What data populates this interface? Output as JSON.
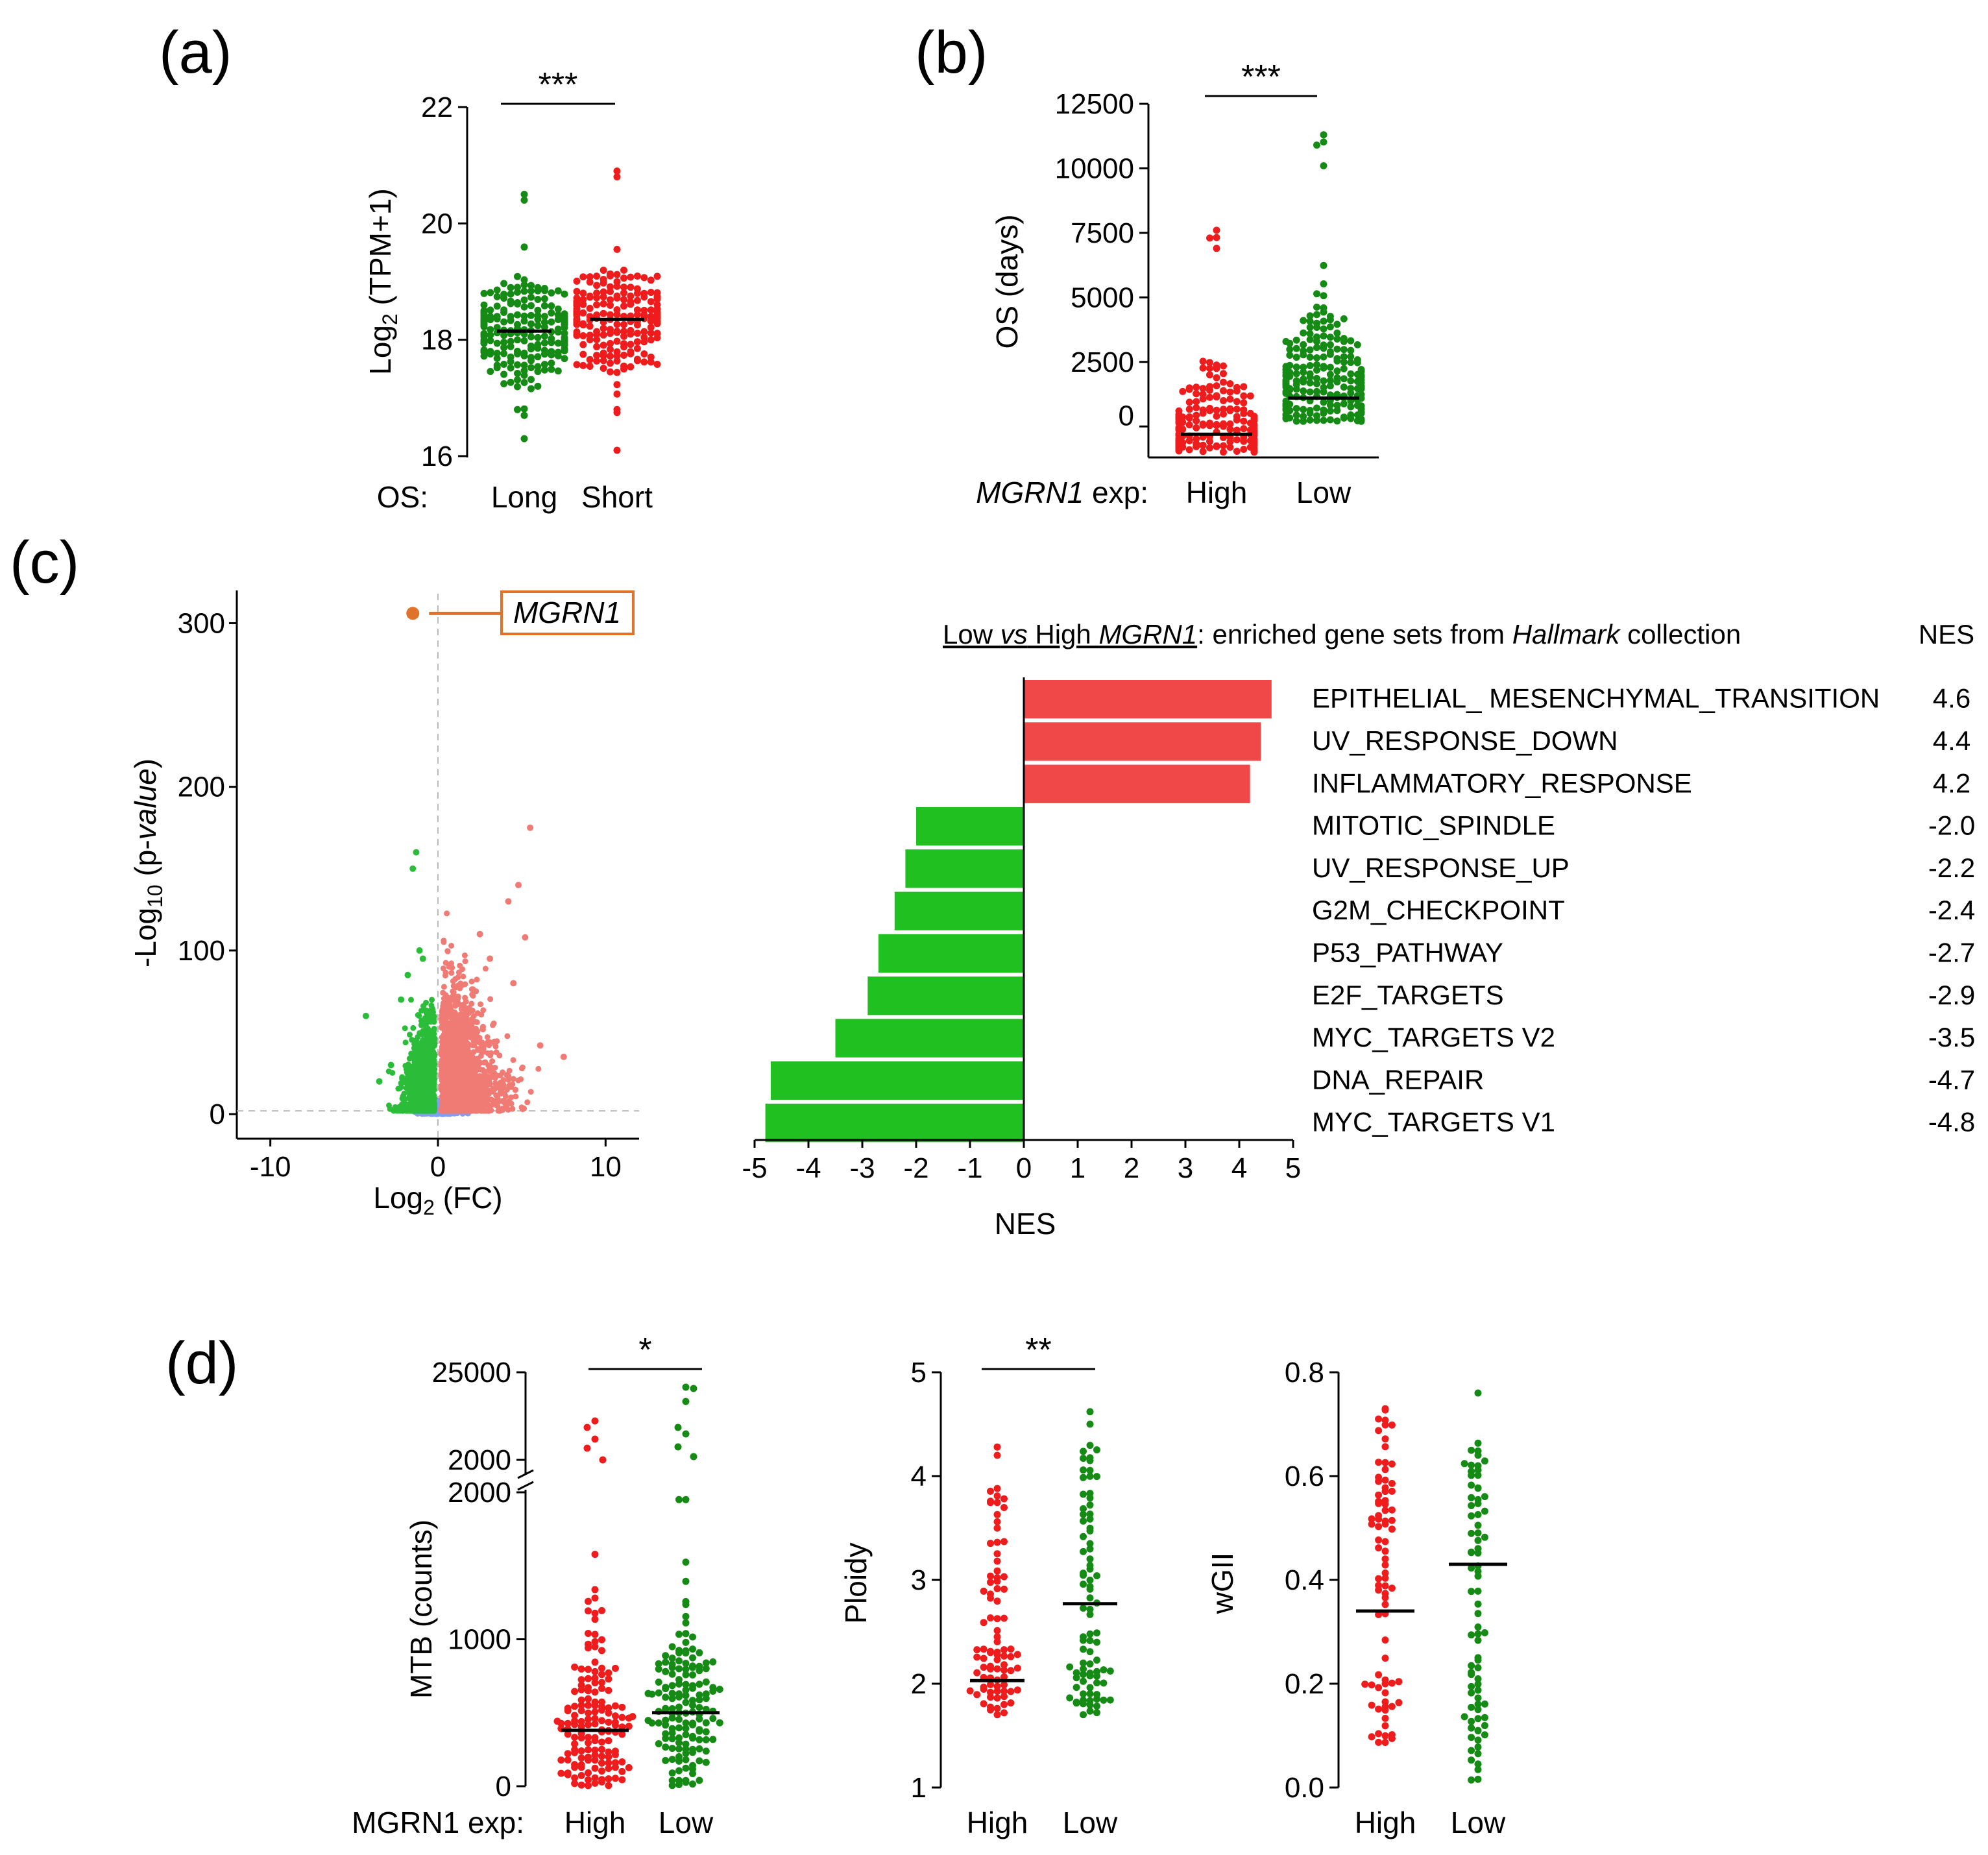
{
  "panels": {
    "a": "(a)",
    "b": "(b)",
    "c": "(c)",
    "d": "(d)"
  },
  "colors": {
    "red": "#ee1c1c",
    "green": "#158a15",
    "volcano_green": "#2bbd3a",
    "volcano_red": "#f07b75",
    "volcano_blue": "#7f9ff0",
    "highlight": "#e0732b",
    "nes_red": "#f04848",
    "nes_green": "#1fc01f"
  },
  "chart_data": [
    {
      "id": "a",
      "type": "scatter",
      "ylabel": "Log",
      "ylabel_sub": "2",
      "ylabel_rest": " (TPM+1)",
      "ylim": [
        16,
        22
      ],
      "yticks": [
        16,
        18,
        20,
        22
      ],
      "xprefix": "OS:",
      "categories": [
        "Long",
        "Short"
      ],
      "medians": [
        18.15,
        18.35
      ],
      "range_low": [
        16.3,
        16.1
      ],
      "range_high": [
        20.5,
        20.9
      ],
      "significance": "***"
    },
    {
      "id": "b",
      "type": "scatter",
      "ylabel": "OS (days)",
      "ylim": [
        -1200,
        12500
      ],
      "yticks": [
        0,
        2500,
        5000,
        7500,
        10000,
        12500
      ],
      "xprefix_italic": "MGRN1",
      "xprefix_rest": " exp:",
      "categories": [
        "High",
        "Low"
      ],
      "medians": [
        -300,
        1100
      ],
      "range_high": [
        7600,
        11300
      ],
      "significance": "***"
    },
    {
      "id": "c_volcano",
      "type": "scatter",
      "xlabel": "Log",
      "xlabel_sub": "2",
      "xlabel_rest": " (FC)",
      "ylabel": "-Log",
      "ylabel_sub": "10",
      "ylabel_rest": " (p-",
      "ylabel_italic": "value",
      "ylabel_end": ")",
      "xlim": [
        -12,
        12
      ],
      "ylim": [
        -15,
        320
      ],
      "xticks": [
        -10,
        0,
        10
      ],
      "yticks": [
        0,
        100,
        200,
        300
      ],
      "highlight": {
        "label": "MGRN1",
        "x": -1.5,
        "y": 306
      }
    },
    {
      "id": "c_gsea",
      "type": "bar",
      "title_pre": "Low ",
      "title_vs": "vs",
      "title_mid": " High ",
      "title_gene": "MGRN1",
      "title_post": ": enriched gene sets from ",
      "title_coll": "Hallmark",
      "title_end": " collection",
      "nes_header": "NES",
      "categories": [
        "EPITHELIAL_ MESENCHYMAL_TRANSITION",
        "UV_RESPONSE_DOWN",
        "INFLAMMATORY_RESPONSE",
        "MITOTIC_SPINDLE",
        "UV_RESPONSE_UP",
        "G2M_CHECKPOINT",
        "P53_PATHWAY",
        "E2F_TARGETS",
        "MYC_TARGETS V2",
        "DNA_REPAIR",
        "MYC_TARGETS V1"
      ],
      "values": [
        4.6,
        4.4,
        4.2,
        -2.0,
        -2.2,
        -2.4,
        -2.7,
        -2.9,
        -3.5,
        -4.7,
        -4.8
      ],
      "value_labels": [
        "4.6",
        "4.4",
        "4.2",
        "-2.0",
        "-2.2",
        "-2.4",
        "-2.7",
        "-2.9",
        "-3.5",
        "-4.7",
        "-4.8"
      ],
      "xlabel": "NES",
      "xlim": [
        -5,
        5
      ],
      "xticks": [
        -5,
        -4,
        -3,
        -2,
        -1,
        0,
        1,
        2,
        3,
        4,
        5
      ]
    },
    {
      "id": "d_mtb",
      "type": "scatter",
      "ylabel": "MTB (counts)",
      "ylim": [
        0,
        2000
      ],
      "yticks": [
        0,
        1000,
        2000
      ],
      "upper_ticks": [
        "25000",
        "2000"
      ],
      "xprefix": "MGRN1  exp:",
      "categories": [
        "High",
        "Low"
      ],
      "medians": [
        380,
        500
      ],
      "significance": "*"
    },
    {
      "id": "d_ploidy",
      "type": "scatter",
      "ylabel": "Ploidy",
      "ylim": [
        1,
        5
      ],
      "yticks": [
        1,
        2,
        3,
        4,
        5
      ],
      "categories": [
        "High",
        "Low"
      ],
      "medians": [
        2.03,
        2.77
      ],
      "significance": "**"
    },
    {
      "id": "d_wgii",
      "type": "scatter",
      "ylabel": "wGII",
      "ylim": [
        0,
        0.8
      ],
      "yticks": [
        "0.0",
        "0.2",
        "0.4",
        "0.6",
        "0.8"
      ],
      "ytick_values": [
        0,
        0.2,
        0.4,
        0.6,
        0.8
      ],
      "categories": [
        "High",
        "Low"
      ],
      "medians": [
        0.34,
        0.43
      ]
    }
  ]
}
